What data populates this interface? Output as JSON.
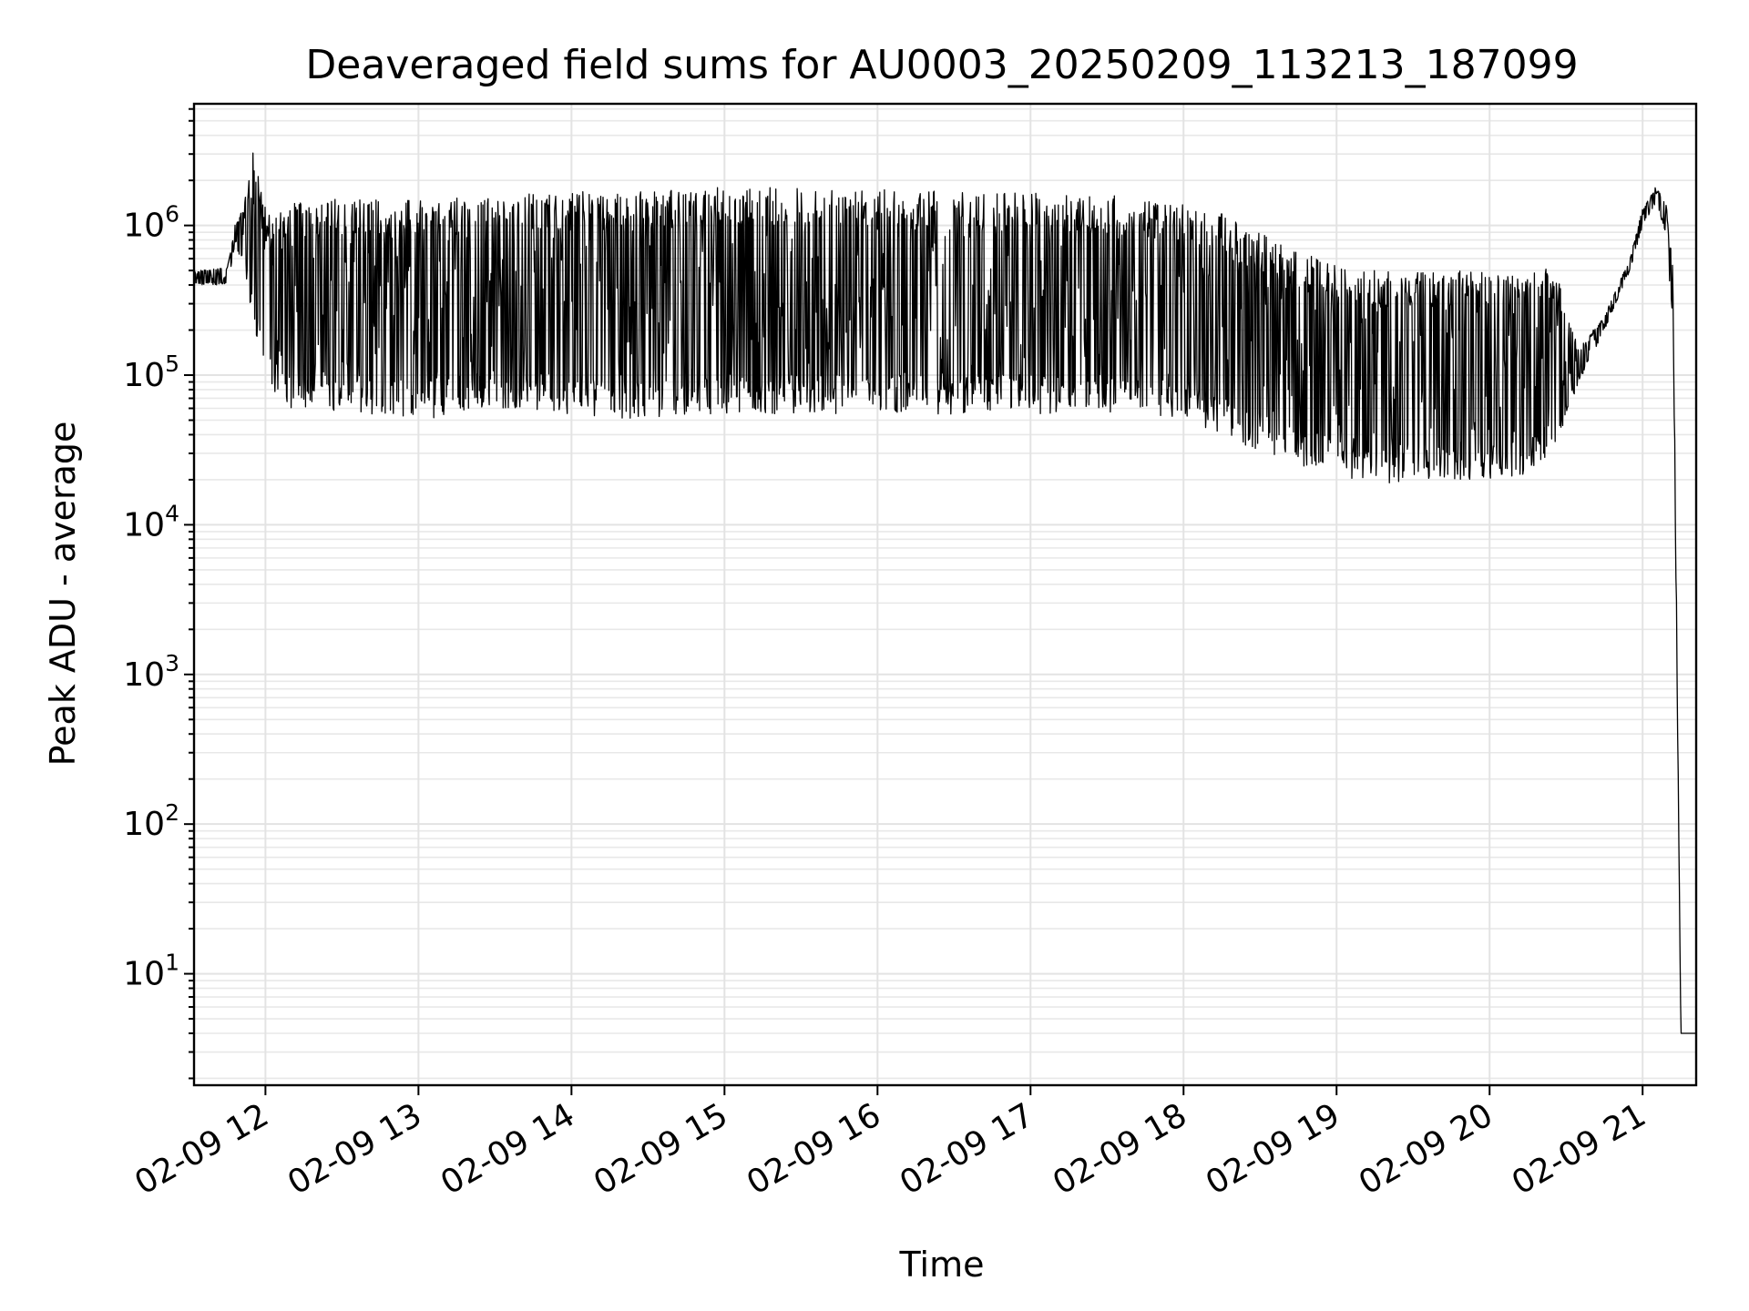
{
  "chart_data": {
    "type": "line",
    "title": "Deaveraged field sums for AU0003_20250209_113213_187099",
    "xlabel": "Time",
    "ylabel": "Peak ADU - average",
    "yscale": "log",
    "xlim": [
      "2025-02-09 11:32",
      "2025-02-09 21:21"
    ],
    "ylim": [
      1.8,
      6500000
    ],
    "grid": true,
    "legend": "none",
    "line_color": "#000000",
    "x_ticks": [
      "02-09 12",
      "02-09 13",
      "02-09 14",
      "02-09 15",
      "02-09 16",
      "02-09 17",
      "02-09 18",
      "02-09 19",
      "02-09 20",
      "02-09 21"
    ],
    "y_ticks": [
      {
        "value": 10,
        "base": "10",
        "exponent": "1"
      },
      {
        "value": 100,
        "base": "10",
        "exponent": "2"
      },
      {
        "value": 1000,
        "base": "10",
        "exponent": "3"
      },
      {
        "value": 10000,
        "base": "10",
        "exponent": "4"
      },
      {
        "value": 100000,
        "base": "10",
        "exponent": "5"
      },
      {
        "value": 1000000,
        "base": "10",
        "exponent": "6"
      }
    ],
    "envelope": {
      "x": [
        "11:32",
        "11:45",
        "11:48",
        "11:52",
        "11:55",
        "12:00",
        "12:10",
        "12:20",
        "13:00",
        "13:30",
        "14:00",
        "14:30",
        "15:00",
        "15:30",
        "16:00",
        "16:30",
        "17:00",
        "17:30",
        "18:00",
        "18:15",
        "18:30",
        "18:45",
        "19:00",
        "19:15",
        "19:30",
        "19:45",
        "20:00",
        "20:15",
        "20:25",
        "20:35",
        "20:45",
        "20:55",
        "21:00",
        "21:05",
        "21:09",
        "21:12",
        "21:15",
        "21:21"
      ],
      "upper": [
        500000,
        520000,
        1000000,
        1500000,
        3500000,
        1300000,
        1400000,
        1500000,
        1500000,
        1600000,
        1700000,
        1700000,
        1800000,
        1800000,
        1750000,
        1700000,
        1650000,
        1600000,
        1400000,
        1200000,
        900000,
        700000,
        550000,
        500000,
        500000,
        500000,
        500000,
        500000,
        550000,
        150000,
        250000,
        600000,
        1300000,
        1800000,
        1500000,
        500000,
        4,
        4
      ],
      "lower": [
        400000,
        400000,
        700000,
        500000,
        230000,
        80000,
        60000,
        60000,
        50000,
        60000,
        55000,
        50000,
        55000,
        55000,
        55000,
        55000,
        55000,
        55000,
        50000,
        40000,
        30000,
        25000,
        22000,
        18000,
        20000,
        20000,
        20000,
        22000,
        30000,
        90000,
        200000,
        500000,
        1000000,
        1400000,
        900000,
        200000,
        4,
        4
      ]
    }
  }
}
